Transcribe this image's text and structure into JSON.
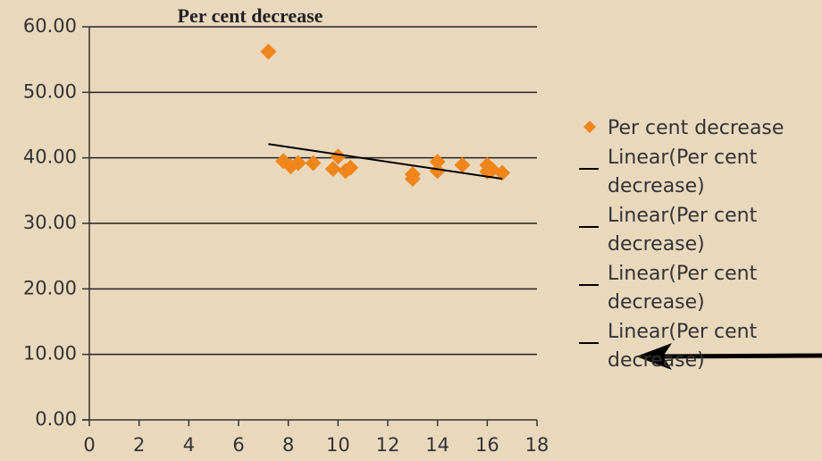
{
  "chart_data": {
    "type": "scatter",
    "title": "Per cent decrease",
    "series": [
      {
        "name": "Per cent decrease",
        "color": "#f0861a",
        "x": [
          7.2,
          7.8,
          8.1,
          8.4,
          9.0,
          9.8,
          10.0,
          10.3,
          10.5,
          13.0,
          13.0,
          14.0,
          14.0,
          15.0,
          16.0,
          16.0,
          16.2,
          16.6
        ],
        "values": [
          56.2,
          39.5,
          38.7,
          39.2,
          39.2,
          38.3,
          40.2,
          38.0,
          38.5,
          36.8,
          37.5,
          38.0,
          39.4,
          38.9,
          38.9,
          37.9,
          38.2,
          37.7
        ]
      }
    ],
    "trendlines": [
      {
        "name": "Linear(Per cent decrease)",
        "color": "#000000",
        "x": [
          7.2,
          16.6
        ],
        "values": [
          42.1,
          36.8
        ]
      },
      {
        "name": "Linear(Per cent decrease)",
        "color": "#000000"
      },
      {
        "name": "Linear(Per cent decrease)",
        "color": "#000000"
      },
      {
        "name": "Linear(Per cent decrease)",
        "color": "#000000"
      }
    ],
    "xlim": [
      0,
      18
    ],
    "xticks": [
      0,
      2,
      4,
      6,
      8,
      10,
      12,
      14,
      16,
      18
    ],
    "ylim": [
      0,
      60
    ],
    "yticks": [
      {
        "value": 0,
        "label": "0.00"
      },
      {
        "value": 10,
        "label": "10.00"
      },
      {
        "value": 20,
        "label": "20.00"
      },
      {
        "value": 30,
        "label": "30.00"
      },
      {
        "value": 40,
        "label": "40.00"
      },
      {
        "value": 50,
        "label": "50.00"
      },
      {
        "value": 60,
        "label": "60.00"
      }
    ],
    "grid": true
  }
}
